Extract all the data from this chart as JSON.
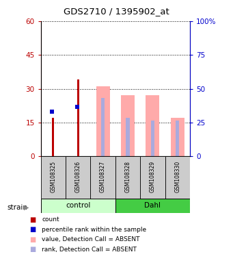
{
  "title": "GDS2710 / 1395902_at",
  "samples": [
    "GSM108325",
    "GSM108326",
    "GSM108327",
    "GSM108328",
    "GSM108329",
    "GSM108330"
  ],
  "red_count": [
    17,
    34,
    0,
    0,
    0,
    0
  ],
  "blue_rank": [
    20,
    22,
    0,
    0,
    0,
    0
  ],
  "pink_value": [
    0,
    0,
    31,
    27,
    27,
    17
  ],
  "lightblue_rank": [
    0,
    0,
    26,
    17,
    16,
    16
  ],
  "ylim_left": [
    0,
    60
  ],
  "ylim_right": [
    0,
    100
  ],
  "yticks_left": [
    0,
    15,
    30,
    45,
    60
  ],
  "yticks_right": [
    0,
    25,
    50,
    75,
    100
  ],
  "ytick_labels_left": [
    "0",
    "15",
    "30",
    "45",
    "60"
  ],
  "ytick_labels_right": [
    "0",
    "25",
    "50",
    "75",
    "100%"
  ],
  "red_color": "#bb0000",
  "blue_color": "#0000cc",
  "pink_color": "#ffaaaa",
  "lightblue_color": "#aaaadd",
  "control_bg": "#ccffcc",
  "dahl_bg": "#44cc44",
  "sample_bg": "#cccccc"
}
